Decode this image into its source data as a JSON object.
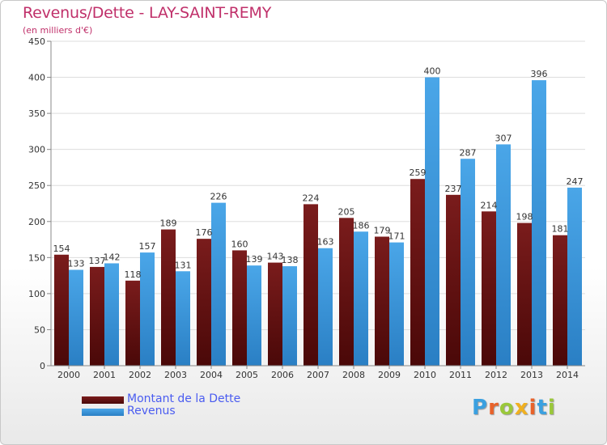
{
  "title": "Revenus/Dette - LAY-SAINT-REMY",
  "subtitle": "(en milliers d'€)",
  "brand": {
    "text": "Proxiti",
    "letter_colors": [
      "#3aa0e0",
      "#e8622a",
      "#9ac83a",
      "#f0b020",
      "#e8622a",
      "#3aa0e0",
      "#9ac83a"
    ]
  },
  "colors": {
    "dette": "#7a1c1c",
    "dette_dark": "#4a0808",
    "revenus": "#4aa6e8",
    "revenus_dark": "#2a7fc4",
    "axis_text": "#333333",
    "grid": "#dddddd",
    "legend_text": "#4a5cf0",
    "title": "#c0306a"
  },
  "chart_data": {
    "type": "bar",
    "categories": [
      "2000",
      "2001",
      "2002",
      "2003",
      "2004",
      "2005",
      "2006",
      "2007",
      "2008",
      "2009",
      "2010",
      "2011",
      "2012",
      "2013",
      "2014"
    ],
    "series": [
      {
        "name": "Montant de la Dette",
        "values": [
          154,
          137,
          118,
          189,
          176,
          160,
          143,
          224,
          205,
          179,
          259,
          237,
          214,
          198,
          181
        ]
      },
      {
        "name": "Revenus",
        "values": [
          133,
          142,
          157,
          131,
          226,
          139,
          138,
          163,
          186,
          171,
          400,
          287,
          307,
          396,
          247
        ]
      }
    ],
    "data_labels": [
      [
        "154",
        "137",
        "118",
        "189",
        "176",
        "160",
        "143",
        "224",
        "205",
        "179",
        "259",
        "237",
        "214",
        "198",
        "181"
      ],
      [
        "133",
        "142",
        "157",
        "131",
        "226",
        "139",
        "138",
        "163",
        "186",
        "171",
        "400",
        "287",
        "307",
        "396",
        "247"
      ]
    ],
    "yticks": [
      0,
      50,
      100,
      150,
      200,
      250,
      300,
      350,
      400,
      450
    ],
    "ylim": [
      0,
      450
    ],
    "grid": true,
    "legend_position": "bottom-left"
  }
}
